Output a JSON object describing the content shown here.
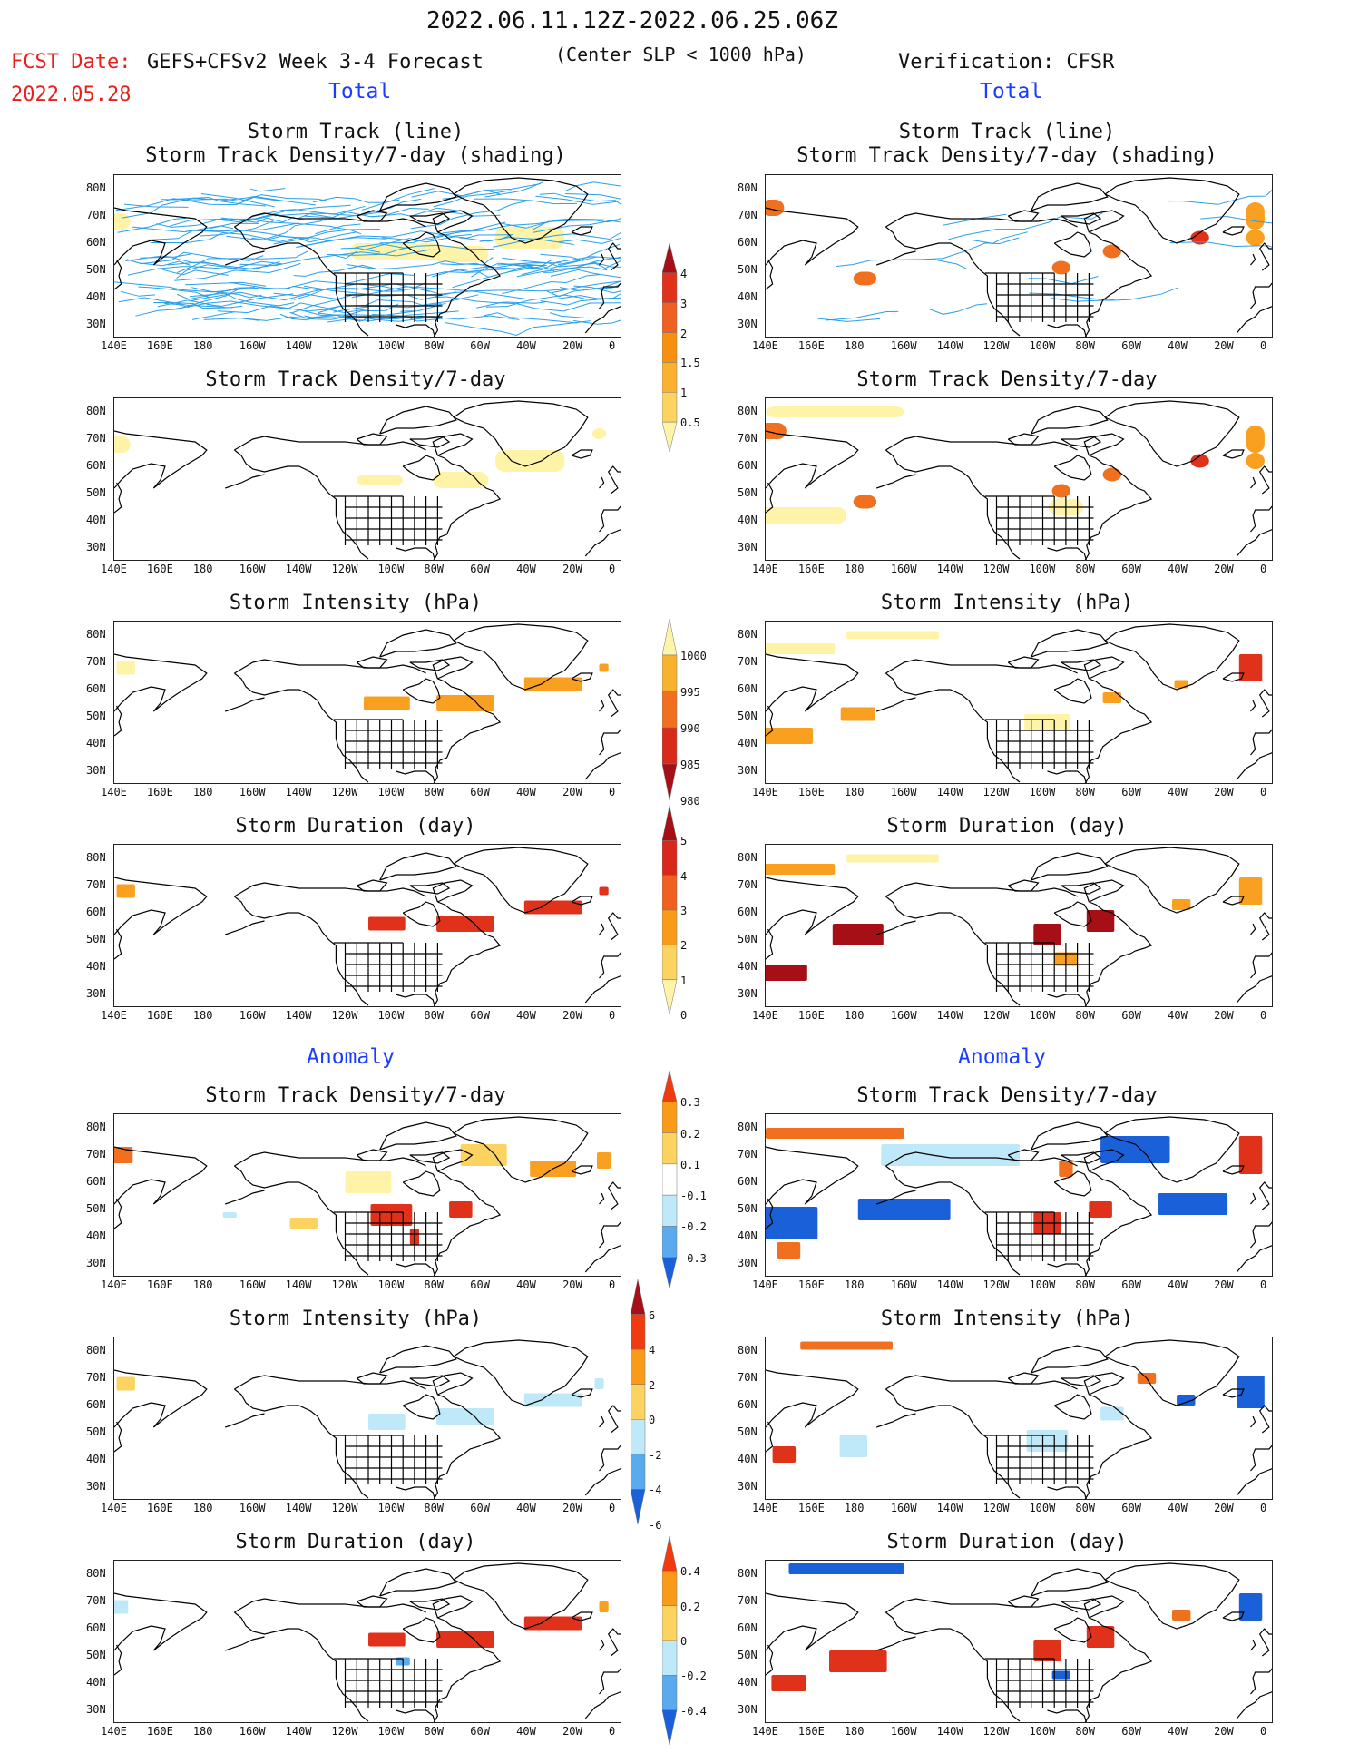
{
  "header": {
    "period": "2022.06.11.12Z-2022.06.25.06Z",
    "fcst_label": "FCST Date:",
    "model_label": "GEFS+CFSv2 Week 3-4 Forecast",
    "criterion": "(Center SLP < 1000 hPa)",
    "verification": "Verification: CFSR",
    "fcst_date": "2022.05.28"
  },
  "section_labels": {
    "total": "Total",
    "anomaly": "Anomaly"
  },
  "titles": {
    "track_line": "Storm Track (line)",
    "track_density_shading": "Storm Track Density/7-day (shading)",
    "track_density": "Storm Track Density/7-day",
    "intensity": "Storm Intensity (hPa)",
    "duration": "Storm Duration (day)"
  },
  "axes": {
    "lat_labels": [
      "80N",
      "70N",
      "60N",
      "50N",
      "40N",
      "30N"
    ],
    "lon_labels": [
      "140E",
      "160E",
      "180",
      "160W",
      "140W",
      "120W",
      "100W",
      "80W",
      "60W",
      "40W",
      "20W",
      "0"
    ]
  },
  "colorbars": [
    {
      "id": "density",
      "labels": [
        "4",
        "3",
        "2",
        "1.5",
        "1",
        "0.5"
      ],
      "colors": [
        "#a50f15",
        "#e0321a",
        "#f06020",
        "#f78f10",
        "#fbb030",
        "#fcd360",
        "#fff3a8"
      ]
    },
    {
      "id": "intensity",
      "labels": [
        "1000",
        "995",
        "990",
        "985",
        "980"
      ],
      "colors": [
        "#fff3a8",
        "#f9b22f",
        "#f07020",
        "#d82a1a",
        "#a50f15"
      ]
    },
    {
      "id": "duration",
      "labels": [
        "5",
        "4",
        "3",
        "2",
        "1",
        "0"
      ],
      "colors": [
        "#a50f15",
        "#d8281c",
        "#f06020",
        "#f99a18",
        "#fcd360",
        "#fff3a8"
      ]
    },
    {
      "id": "anom_density",
      "labels": [
        "0.3",
        "0.2",
        "0.1",
        "-0.1",
        "-0.2",
        "-0.3"
      ],
      "colors": [
        "#f03a10",
        "#f99a18",
        "#fcd360",
        "#ffffff",
        "#bfe8f8",
        "#5aaaee",
        "#1a60d8"
      ]
    },
    {
      "id": "anom_intensity",
      "labels": [
        "6",
        "4",
        "2",
        "0",
        "-2",
        "-4",
        "-6"
      ],
      "colors": [
        "#a50f15",
        "#f03a10",
        "#f99a18",
        "#fcd360",
        "#bfe8f8",
        "#5aaaee",
        "#1a60d8"
      ]
    },
    {
      "id": "anom_duration",
      "labels": [
        "0.4",
        "0.2",
        "0",
        "-0.2",
        "-0.4"
      ],
      "colors": [
        "#f03a10",
        "#f99a18",
        "#fcd360",
        "#bfe8f8",
        "#5aaaee",
        "#1a60d8"
      ]
    }
  ],
  "chart_data": [
    {
      "type": "heatmap",
      "panel": "forecast-total-track-line",
      "title": "Storm Track (line) / Storm Track Density/7-day (shading)",
      "series": "GEFS+CFSv2 Week 3-4 Forecast"
    },
    {
      "type": "heatmap",
      "panel": "verification-total-track-line",
      "title": "Storm Track (line) / Storm Track Density/7-day (shading)",
      "series": "Verification: CFSR"
    },
    {
      "type": "heatmap",
      "panel": "forecast-total-density",
      "title": "Storm Track Density/7-day",
      "max_value": 1.5
    },
    {
      "type": "heatmap",
      "panel": "verification-total-density",
      "title": "Storm Track Density/7-day",
      "max_value": 4
    },
    {
      "type": "heatmap",
      "panel": "forecast-total-intensity",
      "title": "Storm Intensity (hPa)",
      "range": [
        990,
        1000
      ]
    },
    {
      "type": "heatmap",
      "panel": "verification-total-intensity",
      "title": "Storm Intensity (hPa)",
      "range": [
        985,
        1000
      ]
    },
    {
      "type": "heatmap",
      "panel": "forecast-total-duration",
      "title": "Storm Duration (day)",
      "range": [
        1,
        4
      ]
    },
    {
      "type": "heatmap",
      "panel": "verification-total-duration",
      "title": "Storm Duration (day)",
      "range": [
        1,
        5
      ]
    },
    {
      "type": "heatmap",
      "panel": "forecast-anom-density",
      "title": "Storm Track Density/7-day",
      "range": [
        -0.1,
        0.3
      ]
    },
    {
      "type": "heatmap",
      "panel": "verification-anom-density",
      "title": "Storm Track Density/7-day",
      "range": [
        -0.3,
        0.3
      ]
    },
    {
      "type": "heatmap",
      "panel": "forecast-anom-intensity",
      "title": "Storm Intensity (hPa)",
      "range": [
        -4,
        2
      ]
    },
    {
      "type": "heatmap",
      "panel": "verification-anom-intensity",
      "title": "Storm Intensity (hPa)",
      "range": [
        -6,
        6
      ]
    },
    {
      "type": "heatmap",
      "panel": "forecast-anom-duration",
      "title": "Storm Duration (day)",
      "range": [
        -0.2,
        0.4
      ]
    },
    {
      "type": "heatmap",
      "panel": "verification-anom-duration",
      "title": "Storm Duration (day)",
      "range": [
        -0.4,
        0.4
      ]
    }
  ]
}
